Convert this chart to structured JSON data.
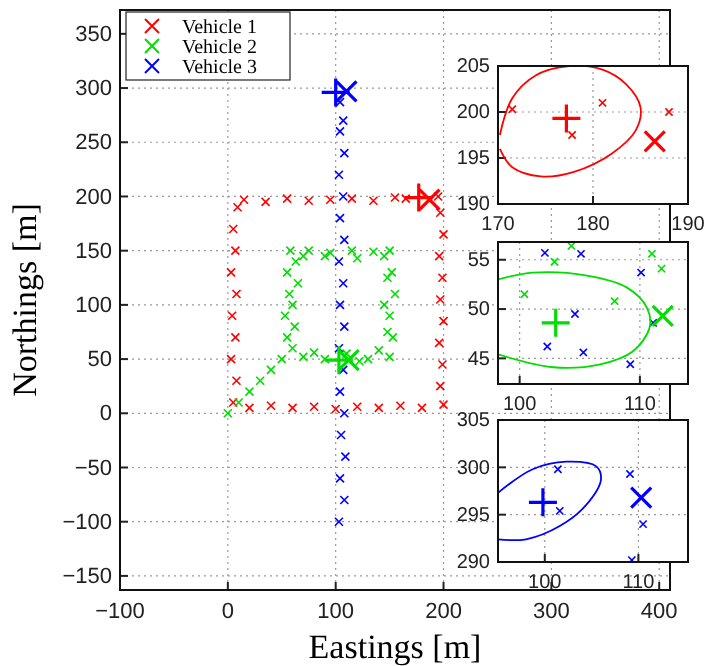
{
  "chart_data": [
    {
      "type": "scatter",
      "xlabel": "Eastings [m]",
      "ylabel": "Northings [m]",
      "xlim": [
        -100,
        410
      ],
      "ylim": [
        -163,
        372
      ],
      "xticks": [
        -100,
        0,
        100,
        200,
        300,
        400
      ],
      "yticks": [
        -150,
        -100,
        -50,
        0,
        50,
        100,
        150,
        200,
        250,
        300,
        350
      ],
      "grid": true,
      "legend": "top left",
      "marker": "cross",
      "series": [
        {
          "name": "Vehicle 1",
          "color": "#ff0000",
          "x": [
            5,
            8,
            3,
            7,
            4,
            8,
            3,
            7,
            5,
            9,
            15,
            35,
            55,
            75,
            95,
            115,
            135,
            155,
            165,
            195,
            197,
            200,
            196,
            199,
            197,
            200,
            196,
            199,
            197,
            200,
            180,
            160,
            140,
            120,
            100,
            80,
            60,
            40,
            20
          ],
          "values": [
            10,
            30,
            50,
            70,
            90,
            110,
            130,
            150,
            170,
            190,
            197,
            195,
            198,
            196,
            197,
            198,
            196,
            199,
            198,
            200,
            185,
            165,
            145,
            125,
            105,
            85,
            65,
            45,
            25,
            8,
            5,
            7,
            5,
            6,
            4,
            6,
            5,
            7,
            5
          ]
        },
        {
          "name": "Vehicle 2",
          "color": "#00dd00",
          "x": [
            0,
            10,
            20,
            30,
            40,
            50,
            55,
            53,
            57,
            55,
            58,
            75,
            95,
            115,
            135,
            150,
            152,
            155,
            150,
            153,
            150,
            130,
            122,
            90,
            70,
            60,
            62,
            60,
            65,
            63,
            70,
            90,
            120,
            145,
            148,
            145,
            148,
            140,
            110,
            80
          ],
          "values": [
            0,
            10,
            20,
            30,
            40,
            50,
            70,
            90,
            110,
            130,
            150,
            150,
            148,
            150,
            149,
            150,
            130,
            110,
            90,
            70,
            52,
            50,
            48,
            50,
            52,
            60,
            80,
            100,
            120,
            140,
            145,
            145,
            143,
            145,
            125,
            100,
            75,
            58,
            55,
            56
          ]
        },
        {
          "name": "Vehicle 3",
          "color": "#0000ff",
          "x": [
            103,
            108,
            104,
            109,
            105,
            108,
            104,
            107,
            103,
            108,
            104,
            107,
            103,
            108,
            104,
            107,
            103,
            108,
            104,
            107,
            104
          ],
          "values": [
            -100,
            -80,
            -60,
            -40,
            -20,
            0,
            20,
            40,
            60,
            80,
            100,
            120,
            140,
            160,
            180,
            200,
            220,
            240,
            260,
            270,
            287
          ]
        },
        {
          "color": "#ff0000",
          "marker": "plus",
          "x": [
            177
          ],
          "values": [
            199
          ]
        },
        {
          "color": "#ff0000",
          "x": [
            187
          ],
          "values": [
            197
          ]
        },
        {
          "color": "#00dd00",
          "marker": "plus",
          "x": [
            103
          ],
          "values": [
            49
          ]
        },
        {
          "color": "#00dd00",
          "x": [
            112
          ],
          "values": [
            49
          ]
        },
        {
          "color": "#0000ff",
          "marker": "plus",
          "x": [
            100
          ],
          "values": [
            296
          ]
        },
        {
          "color": "#0000ff",
          "x": [
            110
          ],
          "values": [
            297
          ]
        }
      ]
    },
    {
      "type": "scatter",
      "xlim": [
        170,
        190
      ],
      "ylim": [
        190,
        205
      ],
      "xticks": [
        170,
        180,
        190
      ],
      "yticks": [
        190,
        195,
        200,
        205
      ],
      "grid": true,
      "marker": "cross",
      "series": [
        {
          "color": "#ff0000",
          "x": [
            171.5,
            177.8,
            181,
            188
          ],
          "values": [
            200.3,
            197.5,
            201,
            200
          ]
        },
        {
          "color": "#ff0000",
          "marker": "plus",
          "x": [
            177.2
          ],
          "values": [
            199.3
          ]
        },
        {
          "color": "#ff0000",
          "x": [
            186.5
          ],
          "values": [
            196.8
          ]
        },
        {
          "type": "line",
          "color": "#ff0000",
          "marker": "none",
          "x": [
            170.2,
            171.5,
            174,
            177.5,
            181,
            183.5,
            185,
            184.5,
            182,
            178,
            174.5,
            171.5,
            170.2
          ],
          "values": [
            197.5,
            201.5,
            204,
            205,
            204.6,
            203,
            200.5,
            198,
            195.5,
            193.5,
            193,
            194,
            196
          ]
        }
      ]
    },
    {
      "type": "scatter",
      "xlim": [
        98.2,
        114
      ],
      "ylim": [
        42.4,
        56.8
      ],
      "xticks": [
        100,
        110
      ],
      "yticks": [
        45,
        50,
        55
      ],
      "grid": true,
      "marker": "cross",
      "series": [
        {
          "color": "#00dd00",
          "x": [
            102.9,
            100.4,
            107.9,
            111,
            111.8,
            104.3
          ],
          "values": [
            54.8,
            51.5,
            50.8,
            55.6,
            54.1,
            56.4
          ]
        },
        {
          "color": "#0000ff",
          "x": [
            102.1,
            105.1,
            110.1,
            104.6,
            102.3,
            105.3,
            109.2,
            111.1
          ],
          "values": [
            55.7,
            55.6,
            53.7,
            49.5,
            46.2,
            45.6,
            44.4,
            48.6
          ]
        },
        {
          "color": "#00dd00",
          "marker": "plus",
          "x": [
            103
          ],
          "values": [
            48.6
          ]
        },
        {
          "color": "#00dd00",
          "x": [
            111.9
          ],
          "values": [
            49.3
          ]
        },
        {
          "type": "line",
          "color": "#00dd00",
          "marker": "none",
          "x": [
            98.2,
            101.1,
            105.6,
            108.9,
            110.6,
            110.8,
            109.4,
            106.7,
            102.8,
            98.2
          ],
          "values": [
            53,
            53.7,
            53.4,
            52.2,
            50.1,
            48.1,
            45.7,
            44.4,
            44.1,
            45.4
          ]
        }
      ]
    },
    {
      "type": "scatter",
      "xlim": [
        95,
        115.3
      ],
      "ylim": [
        290,
        305
      ],
      "xticks": [
        100,
        110
      ],
      "yticks": [
        290,
        295,
        300,
        305
      ],
      "grid": true,
      "marker": "cross",
      "series": [
        {
          "color": "#0000ff",
          "x": [
            101.4,
            101.6,
            109.1,
            110.5,
            109.3
          ],
          "values": [
            299.8,
            295.4,
            299.3,
            294,
            290.2
          ]
        },
        {
          "color": "#0000ff",
          "marker": "plus",
          "x": [
            99.8
          ],
          "values": [
            296.3
          ]
        },
        {
          "color": "#0000ff",
          "x": [
            110.3
          ],
          "values": [
            296.8
          ]
        },
        {
          "type": "line",
          "color": "#0000ff",
          "marker": "none",
          "x": [
            95,
            98.7,
            102.3,
            105.5,
            106,
            104.4,
            101.6,
            98,
            95
          ],
          "values": [
            297.3,
            299.8,
            300.6,
            300.1,
            298.7,
            296,
            293.8,
            292.4,
            292.4
          ]
        }
      ]
    }
  ]
}
